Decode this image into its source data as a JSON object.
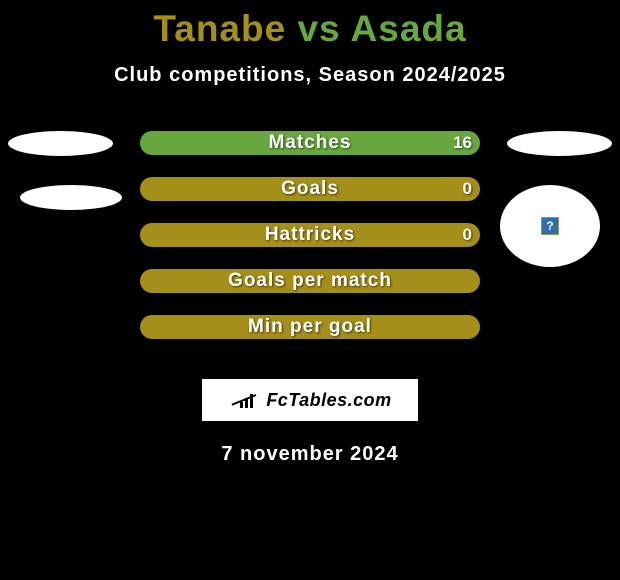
{
  "title": {
    "left": {
      "text": "Tanabe",
      "color": "#a48f19"
    },
    "vs": {
      "text": "vs",
      "color": "#66a83d"
    },
    "right": {
      "text": "Asada",
      "color": "#66a83d"
    }
  },
  "subtitle": "Club competitions, Season 2024/2025",
  "colors": {
    "left_series": "#a48f19",
    "right_series": "#66a83d",
    "background": "#000000",
    "text": "#ffffff"
  },
  "bars": [
    {
      "label": "Matches",
      "left_value": null,
      "right_value": 16,
      "fill_left_pct": 0,
      "fill_left_color": "#a48f19",
      "fill_right_color": "#66a83d",
      "show_right_value": true
    },
    {
      "label": "Goals",
      "left_value": null,
      "right_value": 0,
      "fill_left_pct": 100,
      "fill_left_color": "#a48f19",
      "fill_right_color": "#66a83d",
      "show_right_value": true
    },
    {
      "label": "Hattricks",
      "left_value": null,
      "right_value": 0,
      "fill_left_pct": 100,
      "fill_left_color": "#a48f19",
      "fill_right_color": "#66a83d",
      "show_right_value": true
    },
    {
      "label": "Goals per match",
      "left_value": null,
      "right_value": null,
      "fill_left_pct": 100,
      "fill_left_color": "#a48f19",
      "fill_right_color": "#66a83d",
      "show_right_value": false
    },
    {
      "label": "Min per goal",
      "left_value": null,
      "right_value": null,
      "fill_left_pct": 100,
      "fill_left_color": "#a48f19",
      "fill_right_color": "#66a83d",
      "show_right_value": false
    }
  ],
  "right_badge": {
    "glyph": "?"
  },
  "brand": "FcTables.com",
  "date_line": "7 november 2024"
}
